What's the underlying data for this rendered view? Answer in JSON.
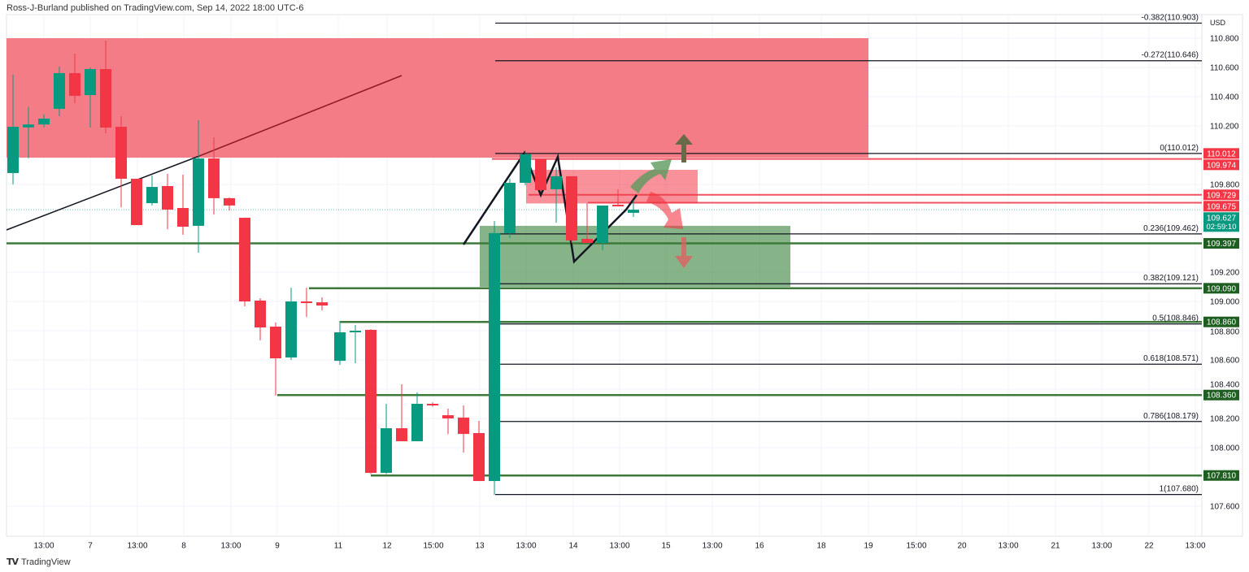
{
  "header": {
    "publisher_text": "Ross-J-Burland published on TradingView.com, Sep 14, 2022 18:00 UTC-6"
  },
  "footer": {
    "brand": "TradingView",
    "logo_text": "TV"
  },
  "chart_data": {
    "type": "candlestick",
    "currency_label": "USD",
    "ylim": [
      107.5,
      110.9
    ],
    "y_ticks": [
      "110.800",
      "110.600",
      "110.400",
      "110.200",
      "109.800",
      "109.200",
      "109.000",
      "108.800",
      "108.600",
      "108.400",
      "108.200",
      "108.000",
      "107.600"
    ],
    "x_ticks": [
      "13:00",
      "7",
      "13:00",
      "8",
      "13:00",
      "9",
      "11",
      "12",
      "15:00",
      "13",
      "13:00",
      "14",
      "13:00",
      "15",
      "13:00",
      "16",
      "18",
      "19",
      "15:00",
      "20",
      "13:00",
      "21",
      "13:00",
      "22",
      "13:00"
    ],
    "colors": {
      "up": "#089981",
      "down": "#f23645",
      "zone_red": "#f23645",
      "zone_green": "#2e7d32",
      "level_green": "#1e5e20"
    },
    "candles": [
      [
        109.878,
        110.194,
        110.55,
        109.8
      ],
      [
        110.19,
        110.21,
        110.33,
        109.98
      ],
      [
        110.21,
        110.25,
        110.28,
        110.19
      ],
      [
        110.317,
        110.561,
        110.606,
        110.267
      ],
      [
        110.561,
        110.406,
        110.694,
        110.356
      ],
      [
        110.411,
        110.589,
        110.6,
        110.189
      ],
      [
        110.589,
        110.189,
        110.783,
        110.15
      ],
      [
        110.194,
        109.839,
        110.267,
        109.644
      ],
      [
        109.839,
        109.522,
        109.839,
        109.522
      ],
      [
        109.672,
        109.783,
        109.861,
        109.656
      ],
      [
        109.789,
        109.628,
        109.872,
        109.494
      ],
      [
        109.639,
        109.511,
        109.867,
        109.456
      ],
      [
        109.517,
        109.978,
        110.239,
        109.333
      ],
      [
        109.978,
        109.706,
        110.122,
        109.594
      ],
      [
        109.706,
        109.656,
        109.711,
        109.622
      ],
      [
        109.572,
        109.0,
        109.572,
        108.967
      ],
      [
        109.006,
        108.822,
        109.022,
        108.733
      ],
      [
        108.828,
        108.611,
        108.856,
        108.356
      ],
      [
        108.617,
        109.0,
        109.094,
        108.6
      ],
      [
        109.0,
        108.995,
        109.094,
        108.894
      ],
      [
        108.994,
        108.972,
        109.028,
        108.939
      ],
      [
        108.594,
        108.789,
        108.867,
        108.567
      ],
      [
        108.795,
        108.8,
        108.839,
        108.578
      ],
      [
        108.806,
        107.828,
        108.81,
        107.82
      ],
      [
        107.828,
        108.133,
        108.3,
        107.82
      ],
      [
        108.133,
        108.044,
        108.433,
        108.044
      ],
      [
        108.044,
        108.3,
        108.378,
        108.044
      ],
      [
        108.3,
        108.29,
        108.31,
        108.28
      ],
      [
        108.222,
        108.2,
        108.267,
        108.094
      ],
      [
        108.206,
        108.094,
        108.289,
        107.967
      ],
      [
        108.1,
        107.772,
        108.183,
        107.772
      ],
      [
        107.772,
        109.467,
        109.55,
        107.678
      ],
      [
        109.467,
        109.811,
        109.839,
        109.433
      ],
      [
        109.811,
        110.006,
        110.022,
        109.794
      ],
      [
        109.972,
        109.761,
        109.972,
        109.75
      ],
      [
        109.767,
        109.856,
        109.917,
        109.539
      ],
      [
        109.856,
        109.417,
        109.856,
        109.4
      ],
      [
        109.428,
        109.4,
        109.672,
        109.4
      ],
      [
        109.4,
        109.656,
        109.656,
        109.35
      ],
      [
        109.661,
        109.65,
        109.767,
        109.65
      ],
      [
        109.606,
        109.627,
        109.689,
        109.578
      ]
    ],
    "candle_fields": [
      "open",
      "close",
      "high",
      "low"
    ],
    "fib_levels": [
      {
        "label": "-0.382(110.903)",
        "price": 110.903
      },
      {
        "label": "-0.272(110.646)",
        "price": 110.646
      },
      {
        "label": "0(110.012)",
        "price": 110.012
      },
      {
        "label": "0.236(109.462)",
        "price": 109.462
      },
      {
        "label": "0.382(109.121)",
        "price": 109.121
      },
      {
        "label": "0.5(108.846)",
        "price": 108.846
      },
      {
        "label": "0.618(108.571)",
        "price": 108.571
      },
      {
        "label": "0.786(108.179)",
        "price": 108.179
      },
      {
        "label": "1(107.680)",
        "price": 107.68
      }
    ],
    "price_labels": [
      {
        "text": "110.012",
        "price": 110.012,
        "color": "#f23645"
      },
      {
        "text": "109.974",
        "price": 109.974,
        "color": "#f23645"
      },
      {
        "text": "109.729",
        "price": 109.729,
        "color": "#f23645"
      },
      {
        "text": "109.675",
        "price": 109.675,
        "color": "#f23645"
      },
      {
        "text": "109.627",
        "price": 109.627,
        "color": "#089981",
        "sub": "02:59:10"
      },
      {
        "text": "109.397",
        "price": 109.397,
        "color": "#1e5e20"
      },
      {
        "text": "109.090",
        "price": 109.09,
        "color": "#1e5e20"
      },
      {
        "text": "108.860",
        "price": 108.86,
        "color": "#1e5e20"
      },
      {
        "text": "108.360",
        "price": 108.36,
        "color": "#1e5e20"
      },
      {
        "text": "107.810",
        "price": 107.81,
        "color": "#1e5e20"
      }
    ],
    "support_levels": [
      109.397,
      109.09,
      108.86,
      108.36,
      107.81
    ],
    "resistance_levels": [
      109.974,
      109.729,
      109.675
    ],
    "zones": [
      {
        "kind": "resistance",
        "top": 110.8,
        "bottom": 109.983
      },
      {
        "kind": "resistance-small",
        "top": 109.9,
        "bottom": 109.67
      },
      {
        "kind": "support",
        "top": 109.517,
        "bottom": 109.1
      }
    ],
    "current_price": 109.627
  }
}
